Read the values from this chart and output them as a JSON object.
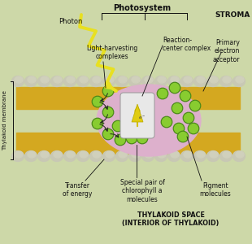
{
  "bg_color": "#cdd8a8",
  "bg_lower": "#c8d49e",
  "title": "Photosystem",
  "stroma_label": "STROMA",
  "photon_label": "Photon",
  "lhc_label": "Light-harvesting\ncomplexes",
  "rcc_label": "Reaction-\ncenter complex",
  "pea_label": "Primary\nelectron\nacceptor",
  "toe_label": "Transfer\nof energy",
  "spc_label": "Special pair of\nchlorophyll a\nmolecules",
  "pm_label": "Pigment\nmolecules",
  "thylakoid_mem_label": "Thylakoid membrane",
  "thylakoid_space_label": "THYLAKOID SPACE\n(INTERIOR OF THYLAKOID)",
  "membrane_color": "#d4a820",
  "membrane_sphere_color": "#b8b8a0",
  "membrane_sphere_color2": "#c8c8b4",
  "photosystem_oval_color": "#ddb0cc",
  "reaction_center_color": "#e8e8e8",
  "chlorophyll_color": "#88cc30",
  "chlorophyll_dark": "#4a8818",
  "photon_color": "#e8e020",
  "photon_outline": "#c8c000",
  "arrow_color": "#222222",
  "label_color": "#111111",
  "figsize": [
    3.1,
    3.0
  ],
  "dpi": 100
}
